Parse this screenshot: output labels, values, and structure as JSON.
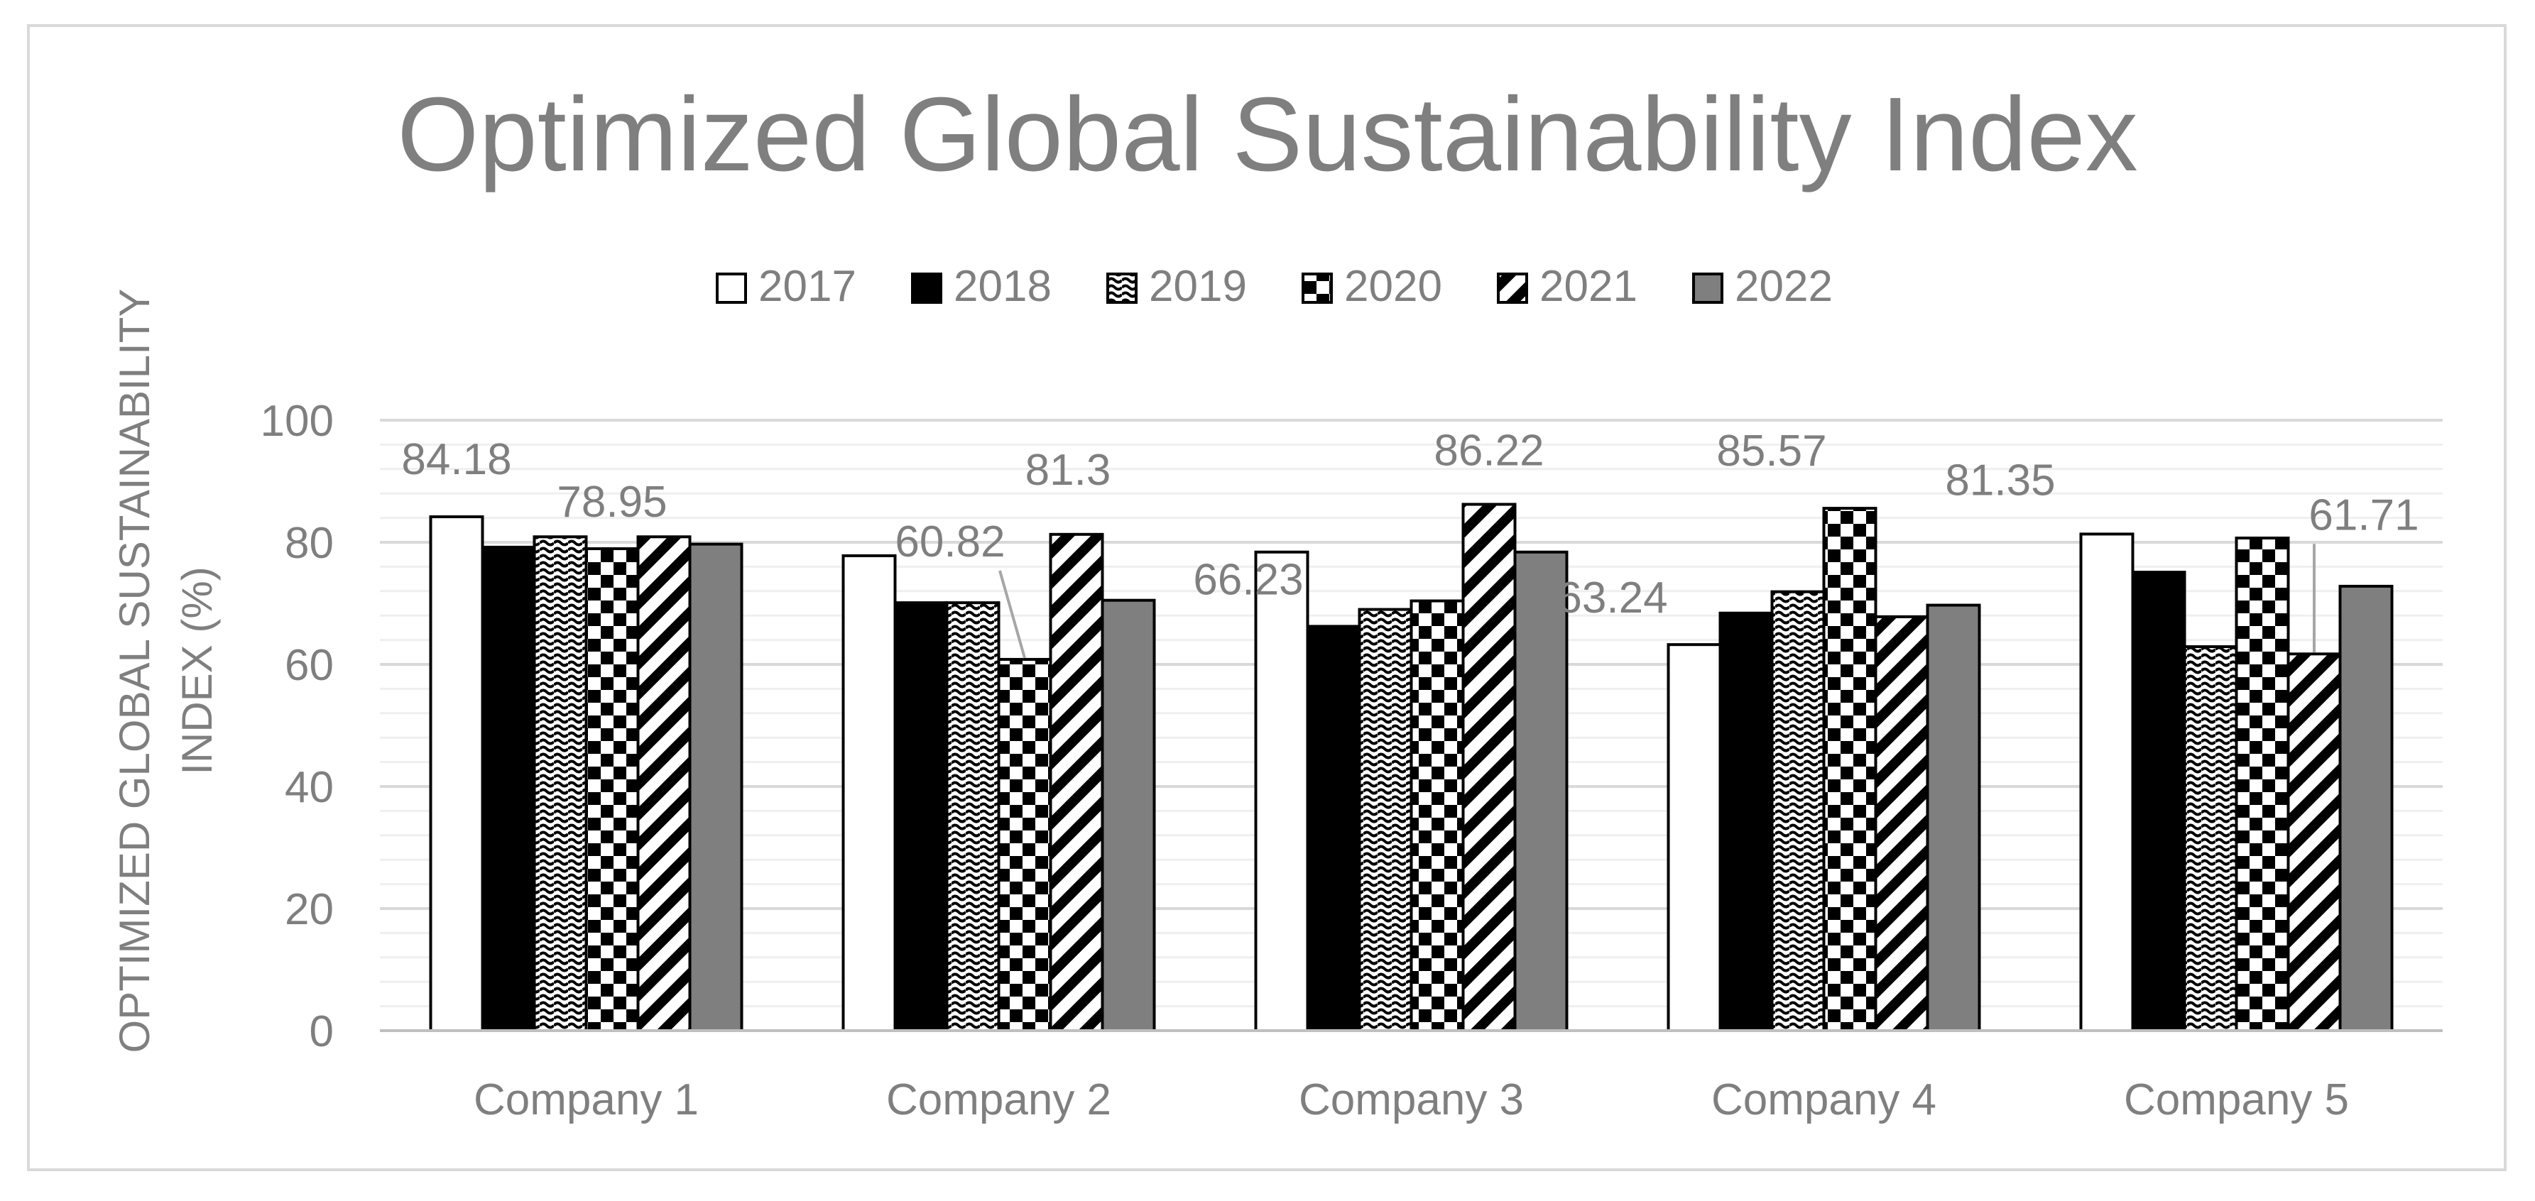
{
  "chart_data": {
    "type": "bar",
    "title": "Optimized Global Sustainability Index",
    "xlabel": "",
    "ylabel": "OPTIMIZED GLOBAL SUSTAINABILITY INDEX (%)",
    "ylabel_lines": [
      "OPTIMIZED GLOBAL SUSTAINABILITY",
      "INDEX (%)"
    ],
    "ylim": [
      0,
      100
    ],
    "yticks": [
      0,
      20,
      40,
      60,
      80,
      100
    ],
    "grid": true,
    "legend_position": "top",
    "categories": [
      "Company 1",
      "Company 2",
      "Company 3",
      "Company 4",
      "Company 5"
    ],
    "series": [
      {
        "name": "2017",
        "pattern": "white",
        "values": [
          84.18,
          77.8,
          78.4,
          63.24,
          81.35
        ]
      },
      {
        "name": "2018",
        "pattern": "black",
        "values": [
          79.2,
          70.1,
          66.23,
          68.4,
          75.1
        ]
      },
      {
        "name": "2019",
        "pattern": "wave",
        "values": [
          80.9,
          70.1,
          69.0,
          71.9,
          62.9
        ]
      },
      {
        "name": "2020",
        "pattern": "checker",
        "values": [
          78.95,
          60.82,
          70.4,
          85.57,
          80.7
        ]
      },
      {
        "name": "2021",
        "pattern": "diagonal",
        "values": [
          80.9,
          81.3,
          86.22,
          67.8,
          61.71
        ]
      },
      {
        "name": "2022",
        "pattern": "gray",
        "values": [
          79.7,
          70.5,
          78.4,
          69.7,
          72.8
        ]
      }
    ],
    "data_labels": [
      {
        "category": "Company 1",
        "series": "2017",
        "text": "84.18"
      },
      {
        "category": "Company 1",
        "series": "2020",
        "text": "78.95"
      },
      {
        "category": "Company 2",
        "series": "2020",
        "text": "60.82",
        "leader": true
      },
      {
        "category": "Company 2",
        "series": "2021",
        "text": "81.3"
      },
      {
        "category": "Company 3",
        "series": "2018",
        "text": "66.23"
      },
      {
        "category": "Company 3",
        "series": "2021",
        "text": "86.22"
      },
      {
        "category": "Company 4",
        "series": "2017",
        "text": "63.24"
      },
      {
        "category": "Company 4",
        "series": "2020",
        "text": "85.57"
      },
      {
        "category": "Company 5",
        "series": "2017",
        "text": "81.35"
      },
      {
        "category": "Company 5",
        "series": "2021",
        "text": "61.71",
        "leader": true
      }
    ],
    "colors": {
      "text": "#7f7f7f",
      "grid": "#d9d9d9",
      "axis": "#bfbfbf",
      "border": "#d9d9d9",
      "gray_bar": "#7f7f7f"
    }
  }
}
